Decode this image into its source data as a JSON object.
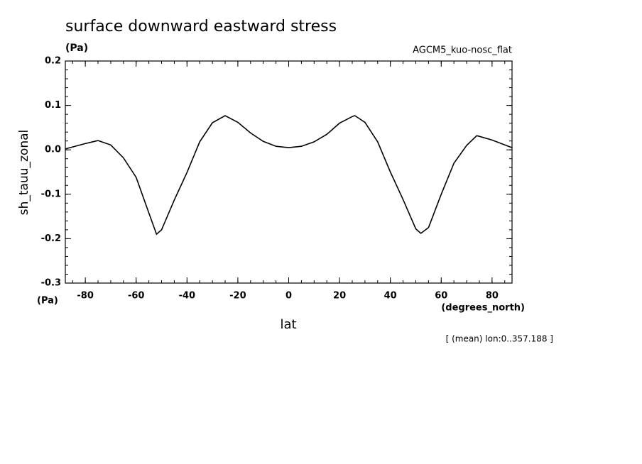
{
  "chart_data": {
    "type": "line",
    "title": "surface downward eastward stress",
    "units": "(Pa)",
    "subtitle": "AGCM5_kuo-nosc_flat",
    "y_label": "sh_tauu_zonal",
    "y_units": "(Pa)",
    "x_units": "(degrees_north)",
    "x_label": "lat",
    "annotation": "[ (mean) lon:0..357.188 ]",
    "x": [
      -87.86,
      -80,
      -75,
      -70,
      -65,
      -60,
      -55,
      -52,
      -50,
      -45,
      -40,
      -35,
      -30,
      -25,
      -20,
      -15,
      -10,
      -5,
      0,
      5,
      10,
      15,
      20,
      25,
      26,
      30,
      35,
      40,
      45,
      50,
      52,
      55,
      60,
      65,
      70,
      74,
      80,
      87.86
    ],
    "series": [
      {
        "name": "sh_tauu_zonal",
        "color": "#000000",
        "values": [
          0.002,
          0.014,
          0.021,
          0.011,
          -0.018,
          -0.062,
          -0.142,
          -0.19,
          -0.18,
          -0.113,
          -0.051,
          0.018,
          0.061,
          0.077,
          0.062,
          0.038,
          0.019,
          0.008,
          0.005,
          0.008,
          0.018,
          0.035,
          0.06,
          0.075,
          0.077,
          0.062,
          0.018,
          -0.05,
          -0.112,
          -0.178,
          -0.188,
          -0.175,
          -0.1,
          -0.03,
          0.01,
          0.032,
          0.022,
          0.005
        ]
      }
    ],
    "xlim": [
      -87.86,
      87.86
    ],
    "xticks": [
      -80,
      -60,
      -40,
      -20,
      0,
      20,
      40,
      60,
      80
    ],
    "ylim": [
      -0.3,
      0.2
    ],
    "yticks": [
      -0.3,
      -0.2,
      -0.1,
      {
        "value": 0,
        "label": "0.0"
      },
      0.1,
      0.2
    ]
  }
}
